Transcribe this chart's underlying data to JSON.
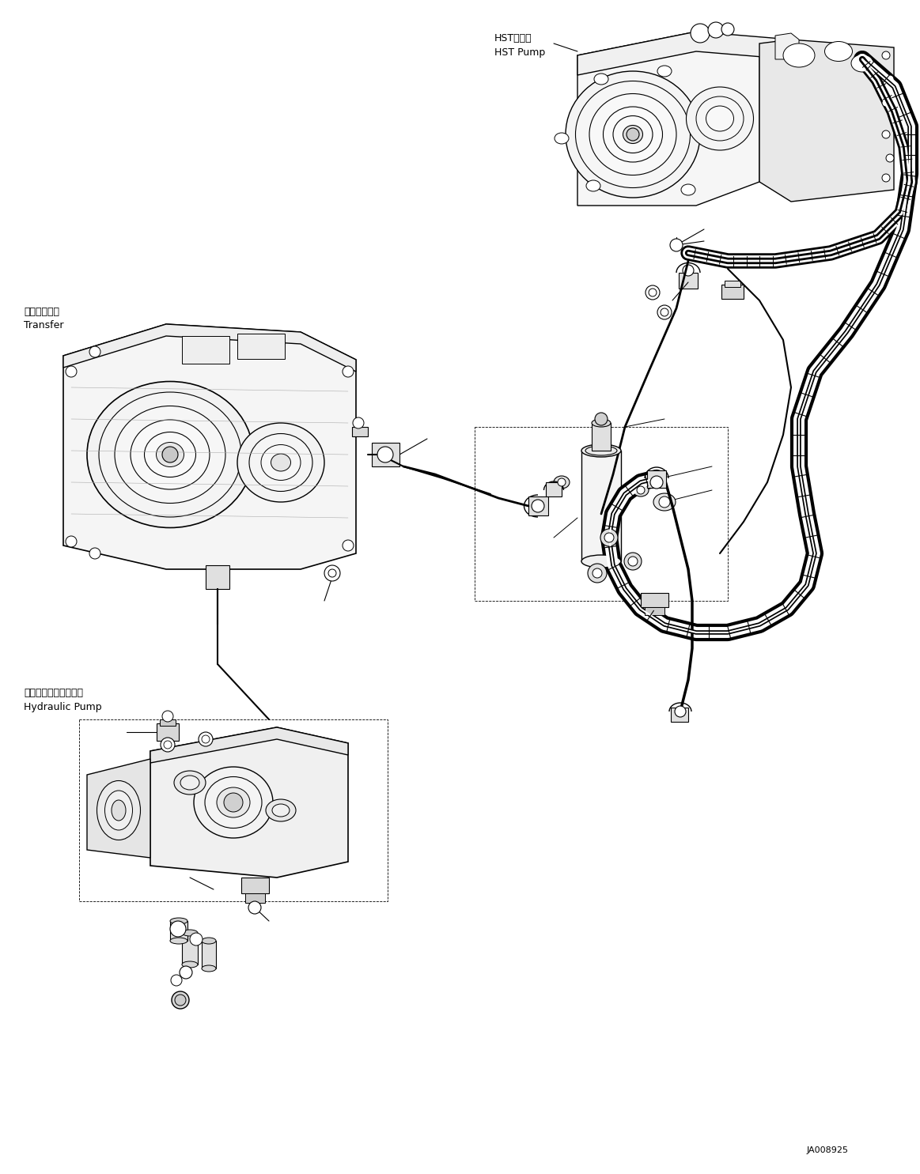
{
  "background_color": "#ffffff",
  "line_color": "#000000",
  "fig_width": 11.63,
  "fig_height": 14.85,
  "dpi": 100,
  "labels": {
    "hst_pump_jp": "HSTポンプ",
    "hst_pump_en": "HST Pump",
    "transfer_jp": "トランスファ",
    "transfer_en": "Transfer",
    "hydraulic_pump_jp": "ハイドロリックポンプ",
    "hydraulic_pump_en": "Hydraulic Pump",
    "part_number": "JA008925"
  },
  "font_sizes": {
    "component_label": 9,
    "part_number": 8
  }
}
